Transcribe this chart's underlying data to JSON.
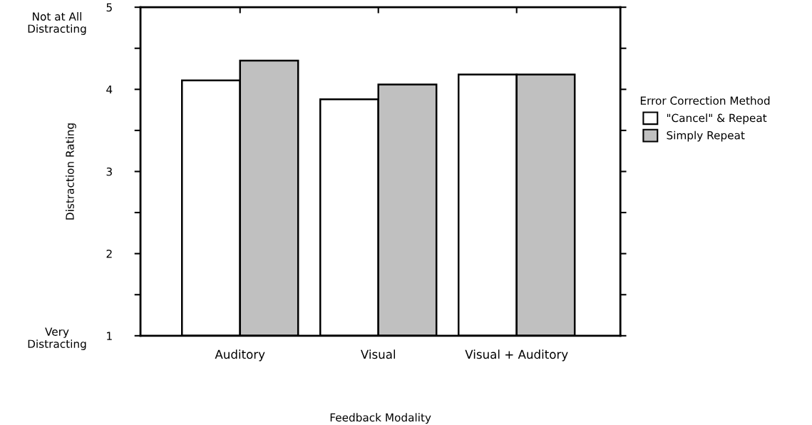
{
  "chart_data": {
    "type": "bar",
    "categories": [
      "Auditory",
      "Visual",
      "Visual + Auditory"
    ],
    "series": [
      {
        "name": "\"Cancel\" & Repeat",
        "color": "#ffffff",
        "values": [
          4.11,
          3.88,
          4.18
        ]
      },
      {
        "name": "Simply Repeat",
        "color": "#c0c0c0",
        "values": [
          4.35,
          4.06,
          4.18
        ]
      }
    ],
    "xlabel": "Feedback Modality",
    "ylabel": "Distraction Rating",
    "legend_title": "Error Correction Method",
    "ylim": [
      1,
      5
    ],
    "yticks": [
      1,
      {
        "value": 1.5,
        "label": null
      },
      2,
      {
        "value": 2.5,
        "label": null
      },
      3,
      {
        "value": 3.5,
        "label": null
      },
      4,
      {
        "value": 4.5,
        "label": null
      },
      5
    ],
    "annotations": [
      "Not at All\nDistracting",
      "Very\nDistracting"
    ],
    "legend": "right",
    "grid": false
  }
}
